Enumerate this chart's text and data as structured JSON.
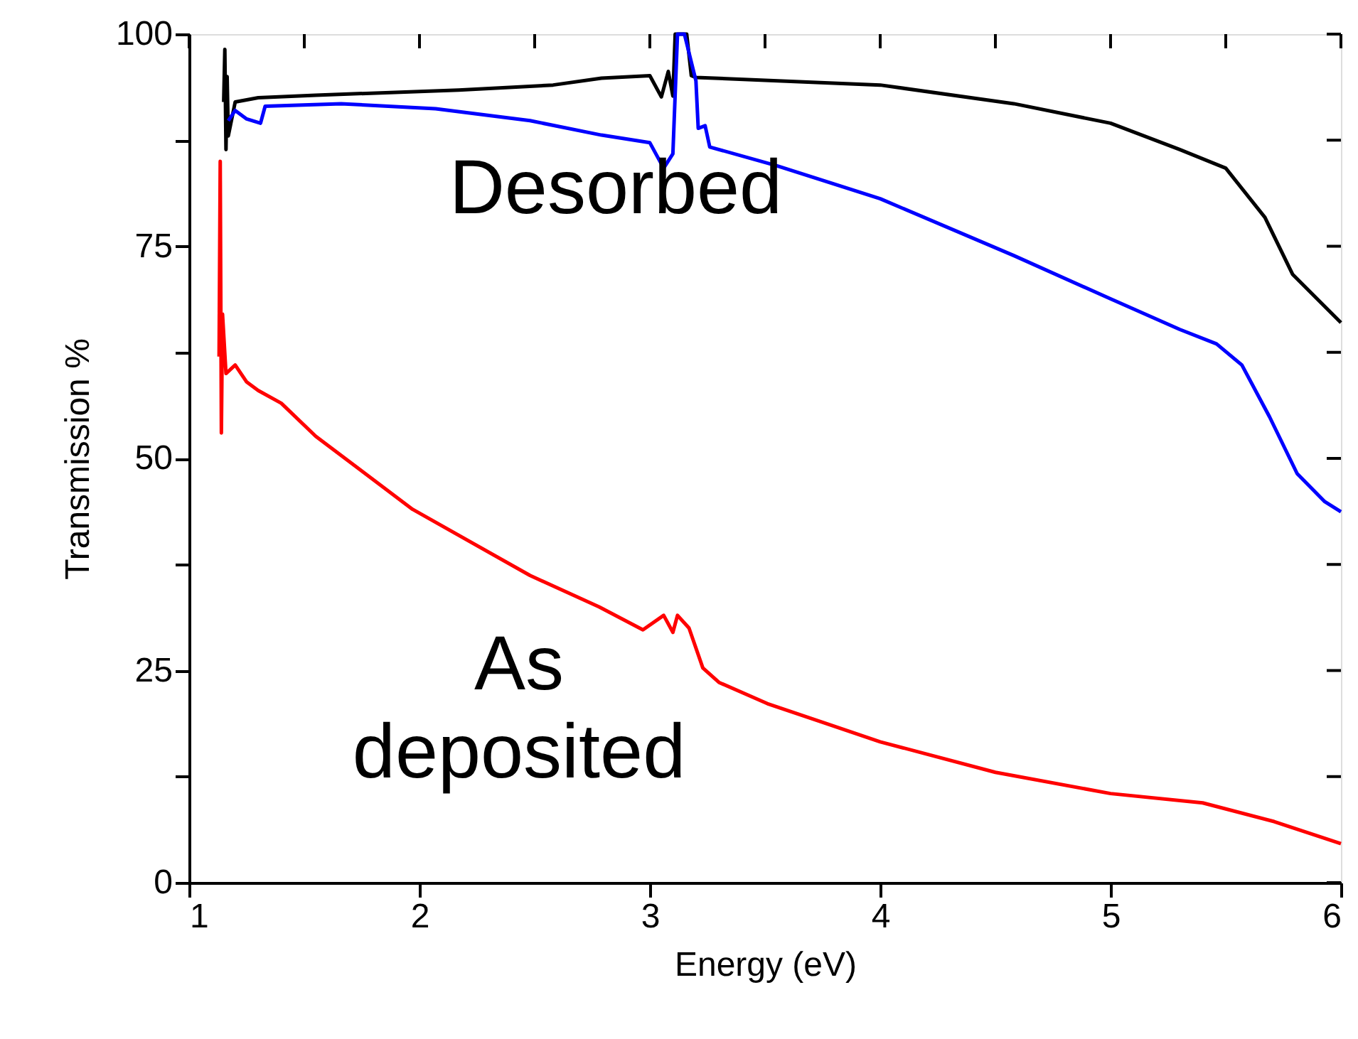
{
  "chart_data": {
    "type": "line",
    "xlabel": "Energy (eV)",
    "ylabel": "Transmission %",
    "xlim": [
      1,
      6
    ],
    "ylim": [
      0,
      100
    ],
    "xticks": [
      1,
      {
        "value": 1.5,
        "label": null
      },
      2,
      {
        "value": 2.5,
        "label": null
      },
      3,
      {
        "value": 3.5,
        "label": null
      },
      4,
      {
        "value": 4.5,
        "label": null
      },
      5,
      {
        "value": 5.5,
        "label": null
      },
      6
    ],
    "yticks": [
      0,
      {
        "value": 12.5,
        "label": null
      },
      25,
      {
        "value": 37.5,
        "label": null
      },
      50,
      {
        "value": 62.5,
        "label": null
      },
      75,
      {
        "value": 87.5,
        "label": null
      },
      100
    ],
    "grid": false,
    "marker": "none",
    "line_style": "solid",
    "annotations": [
      "Desorbed",
      "As deposited"
    ],
    "series": [
      {
        "color": "#000000",
        "x": [
          1.15,
          1.155,
          1.16,
          1.165,
          1.17,
          1.2,
          1.3,
          1.55,
          2.17,
          2.58,
          2.79,
          3.0,
          3.05,
          3.08,
          3.1,
          3.11,
          3.16,
          3.18,
          3.2,
          4.0,
          4.58,
          5.0,
          5.3,
          5.5,
          5.67,
          5.79,
          6.0
        ],
        "values": [
          92,
          98.2,
          86.4,
          95,
          88,
          92,
          92.5,
          92.8,
          93.4,
          94,
          94.8,
          95.1,
          92.6,
          95.6,
          92.7,
          100,
          100,
          95.1,
          94.9,
          94,
          91.8,
          89.5,
          86.4,
          84.2,
          78.4,
          71.7,
          66
        ]
      },
      {
        "color": "#0000ff",
        "x": [
          1.17,
          1.2,
          1.25,
          1.31,
          1.33,
          1.66,
          2.07,
          2.48,
          2.79,
          3.0,
          3.06,
          3.1,
          3.12,
          3.15,
          3.2,
          3.21,
          3.24,
          3.26,
          3.55,
          4.0,
          4.58,
          5.0,
          5.3,
          5.46,
          5.57,
          5.69,
          5.81,
          5.93,
          6.0
        ],
        "values": [
          89.8,
          91,
          90,
          89.5,
          91.5,
          91.8,
          91.2,
          89.8,
          88.1,
          87.2,
          84.2,
          85.9,
          100,
          100,
          94.5,
          88.9,
          89.2,
          86.7,
          84.5,
          80.6,
          73.9,
          68.8,
          65.2,
          63.5,
          61,
          54.9,
          48.2,
          44.9,
          43.7
        ]
      },
      {
        "color": "#ff0000",
        "x": [
          1.13,
          1.135,
          1.14,
          1.145,
          1.16,
          1.2,
          1.25,
          1.3,
          1.4,
          1.55,
          1.97,
          2.48,
          2.78,
          2.97,
          3.06,
          3.1,
          3.12,
          3.17,
          3.23,
          3.3,
          3.51,
          4.0,
          4.5,
          5.0,
          5.4,
          5.71,
          6.0
        ],
        "values": [
          62,
          85,
          53,
          67,
          60,
          61,
          59,
          58,
          56.5,
          52.6,
          44,
          36.2,
          32.5,
          29.8,
          31.5,
          29.5,
          31.5,
          30,
          25.3,
          23.6,
          21.1,
          16.6,
          13,
          10.5,
          9.4,
          7.2,
          4.6
        ]
      }
    ]
  }
}
